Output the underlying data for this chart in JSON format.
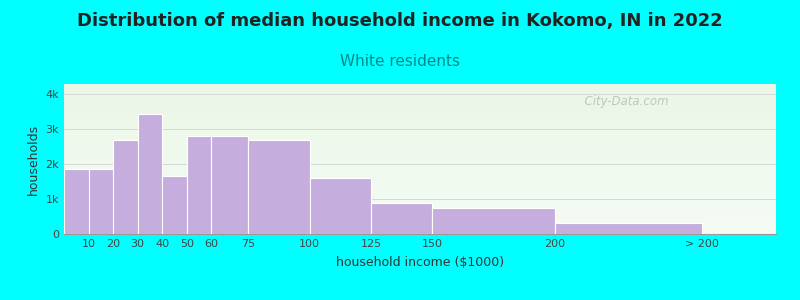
{
  "title": "Distribution of median household income in Kokomo, IN in 2022",
  "subtitle": "White residents",
  "xlabel": "household income ($1000)",
  "ylabel": "households",
  "background_color": "#00FFFF",
  "bar_color": "#c5aedd",
  "bar_edge_color": "#ffffff",
  "bar_lefts": [
    0,
    10,
    20,
    30,
    40,
    50,
    60,
    75,
    100,
    125,
    150,
    200
  ],
  "bar_widths": [
    10,
    10,
    10,
    10,
    10,
    10,
    15,
    25,
    25,
    25,
    50,
    60
  ],
  "bar_values": [
    1850,
    1850,
    2700,
    3450,
    1650,
    2800,
    2800,
    2700,
    1600,
    900,
    750,
    325
  ],
  "xtick_positions": [
    10,
    20,
    30,
    40,
    50,
    60,
    75,
    100,
    125,
    150,
    200,
    260
  ],
  "xtick_labels": [
    "10",
    "20",
    "30",
    "40",
    "50",
    "60",
    "75",
    "100",
    "125",
    "150",
    "200",
    "> 200"
  ],
  "yticks": [
    0,
    1000,
    2000,
    3000,
    4000
  ],
  "ytick_labels": [
    "0",
    "1k",
    "2k",
    "3k",
    "4k"
  ],
  "ylim": [
    0,
    4300
  ],
  "xlim": [
    0,
    290
  ],
  "title_fontsize": 13,
  "subtitle_fontsize": 11,
  "subtitle_color": "#008888",
  "watermark_text": "  City-Data.com",
  "watermark_color": "#bbbbbb",
  "plot_bg_top": "#e8f5e0",
  "plot_bg_bottom": "#f5fbff"
}
